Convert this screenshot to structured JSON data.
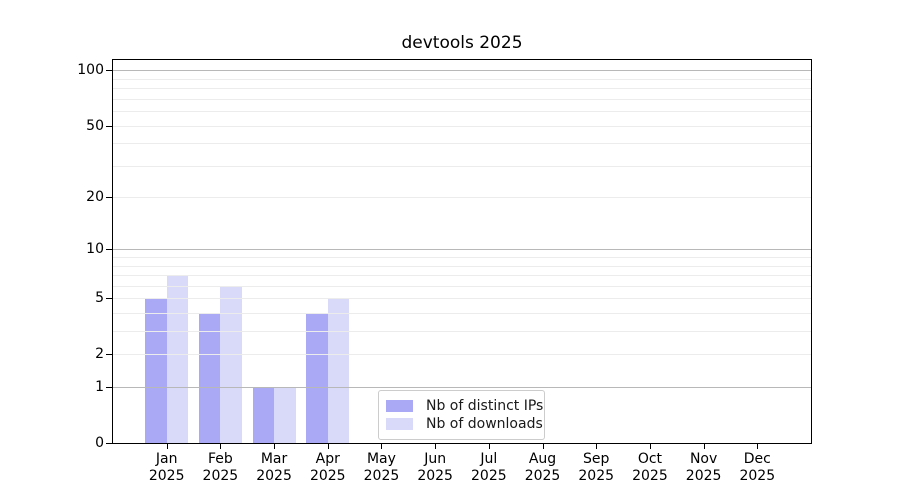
{
  "chart_data": {
    "type": "bar",
    "title": "devtools 2025",
    "xlabel": "",
    "ylabel": "",
    "scale": "log1p",
    "categories": [
      "Jan",
      "Feb",
      "Mar",
      "Apr",
      "May",
      "Jun",
      "Jul",
      "Aug",
      "Sep",
      "Oct",
      "Nov",
      "Dec"
    ],
    "x_tick_second_line": "2025",
    "series": [
      {
        "name": "Nb of distinct IPs",
        "color": "#a9a9f5",
        "values": [
          5,
          4,
          1,
          4,
          0,
          0,
          0,
          0,
          0,
          0,
          0,
          0
        ]
      },
      {
        "name": "Nb of downloads",
        "color": "#d9d9fa",
        "values": [
          7,
          6,
          1,
          5,
          0,
          0,
          0,
          0,
          0,
          0,
          0,
          0
        ]
      }
    ],
    "ylim": [
      0,
      113
    ],
    "y_ticks": [
      0,
      1,
      2,
      5,
      10,
      20,
      50,
      100
    ],
    "y_minor_ticks": [
      3,
      4,
      6,
      7,
      8,
      9,
      30,
      40,
      60,
      70,
      80,
      90
    ],
    "y_major_grid": [
      1,
      10,
      100
    ],
    "grid": true,
    "legend_position": "lower-center",
    "colors": {
      "spine": "#000000",
      "major_grid": "#b8b8b8",
      "minor_grid": "#ececec",
      "legend_border": "#cccccc",
      "background": "#ffffff"
    }
  }
}
